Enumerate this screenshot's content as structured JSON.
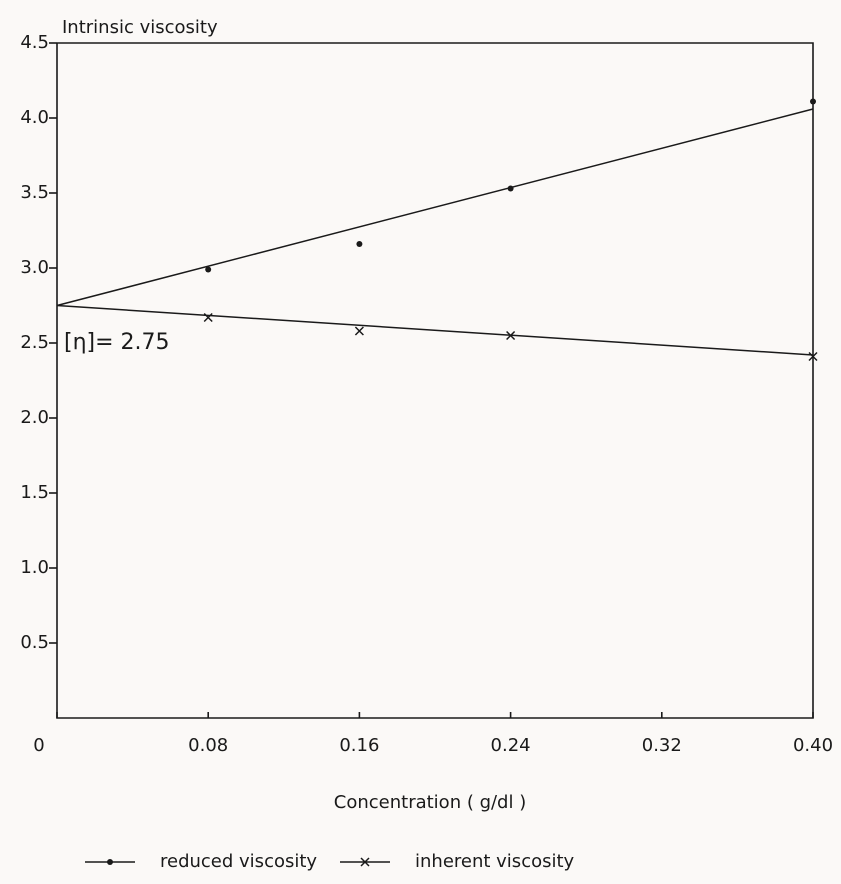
{
  "chart_data": {
    "type": "scatter",
    "ylabel": "Intrinsic viscosity",
    "xlabel": "Concentration ( g/dl )",
    "annotation": "[η]= 2.75",
    "xlim": [
      0,
      0.4
    ],
    "ylim": [
      0,
      4.5
    ],
    "xticks": [
      0,
      0.08,
      0.16,
      0.24,
      0.32,
      {
        "value": 0.4,
        "label": "0.40"
      }
    ],
    "yticks": [
      0.5,
      {
        "value": 1,
        "label": "1.0"
      },
      1.5,
      {
        "value": 2,
        "label": "2.0"
      },
      2.5,
      {
        "value": 3,
        "label": "3.0"
      },
      3.5,
      {
        "value": 4,
        "label": "4.0"
      },
      4.5
    ],
    "x": [
      0.08,
      0.16,
      0.24,
      0.4
    ],
    "series": [
      {
        "name": "reduced viscosity",
        "color": "#1a1a1a",
        "marker": "dot",
        "values": [
          2.99,
          3.16,
          3.53,
          4.11
        ]
      },
      {
        "name": "inherent viscosity",
        "color": "#1a1a1a",
        "marker": "x",
        "values": [
          2.67,
          2.58,
          2.55,
          2.41
        ]
      }
    ],
    "fit_lines": [
      {
        "x": [
          0,
          0.4
        ],
        "values": [
          2.75,
          4.06
        ]
      },
      {
        "x": [
          0,
          0.4
        ],
        "values": [
          2.75,
          2.42
        ]
      }
    ]
  }
}
